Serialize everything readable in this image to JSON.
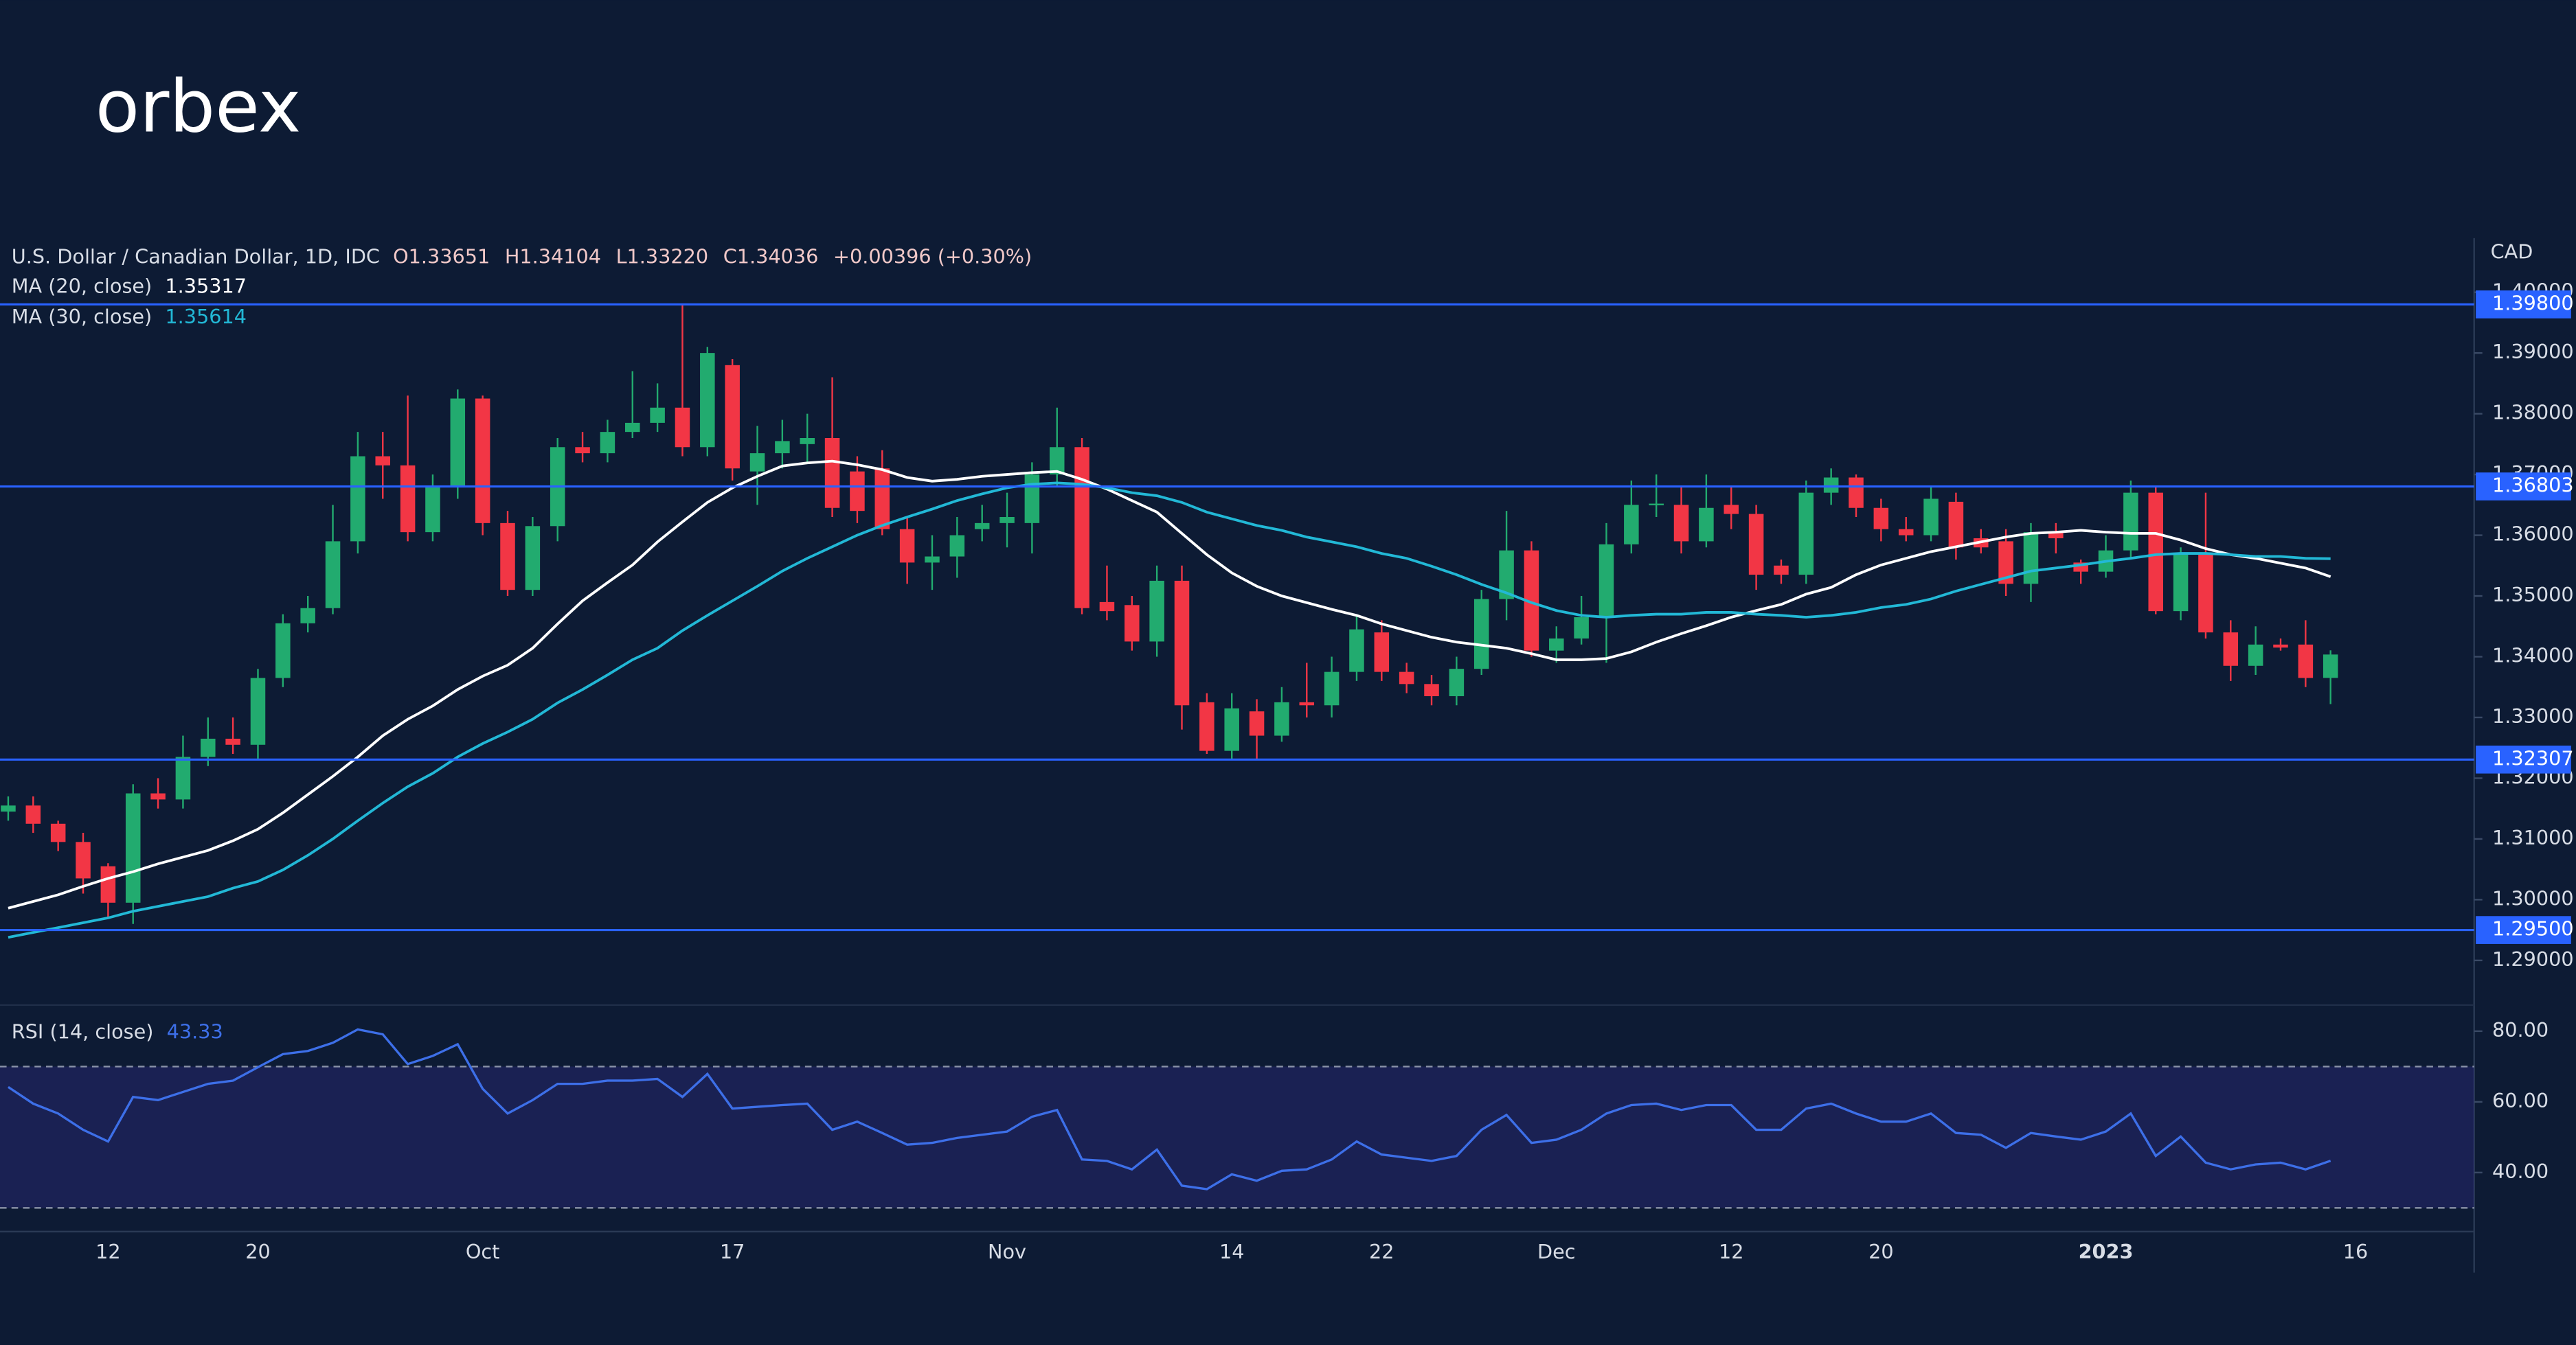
{
  "brand": "orbex",
  "chart_data": {
    "type": "candlestick",
    "title": "U.S. Dollar / Canadian Dollar, 1D, IDC",
    "header_values": [
      "O1.33651",
      "H1.34104",
      "L1.33220",
      "C1.34036",
      "+0.00396 (+0.30%)"
    ],
    "axis_unit": "CAD",
    "up_color": "#22ab6f",
    "down_color": "#f23645",
    "categories": [
      null,
      null,
      null,
      null,
      "12",
      null,
      null,
      null,
      null,
      null,
      "20",
      null,
      null,
      null,
      null,
      null,
      null,
      null,
      null,
      "Oct",
      null,
      null,
      null,
      null,
      null,
      null,
      null,
      null,
      null,
      "17",
      null,
      null,
      null,
      null,
      null,
      null,
      null,
      null,
      null,
      null,
      "Nov",
      null,
      null,
      null,
      null,
      null,
      null,
      null,
      null,
      "14",
      null,
      null,
      null,
      null,
      null,
      "22",
      null,
      null,
      null,
      null,
      null,
      null,
      "Dec",
      null,
      null,
      null,
      null,
      null,
      null,
      "12",
      null,
      null,
      null,
      null,
      null,
      "20",
      null,
      null,
      null,
      null,
      null,
      null,
      null,
      null,
      "2023",
      null,
      null,
      null,
      null,
      null,
      null,
      null,
      null,
      null,
      "16"
    ],
    "open": [
      1.3145,
      1.3155,
      1.3125,
      1.3095,
      1.3055,
      1.2995,
      1.3175,
      1.3165,
      1.3235,
      1.3265,
      1.3255,
      1.3365,
      1.3455,
      1.348,
      1.359,
      1.373,
      1.3715,
      1.3605,
      1.368,
      1.3825,
      1.362,
      1.351,
      1.3615,
      1.3745,
      1.3735,
      1.377,
      1.3785,
      1.381,
      1.3745,
      1.388,
      1.3705,
      1.3735,
      1.375,
      1.376,
      1.3705,
      1.371,
      1.361,
      1.3555,
      1.3565,
      1.361,
      1.362,
      1.362,
      1.37,
      1.3745,
      1.349,
      1.3485,
      1.3425,
      1.3525,
      1.3325,
      1.3245,
      1.331,
      1.327,
      1.3325,
      1.332,
      1.3375,
      1.344,
      1.3375,
      1.3355,
      1.3335,
      1.338,
      1.3495,
      1.3575,
      1.341,
      1.343,
      1.3465,
      1.3585,
      1.365,
      1.365,
      1.359,
      1.365,
      1.3635,
      1.355,
      1.3535,
      1.367,
      1.3695,
      1.3645,
      1.361,
      1.36,
      1.3655,
      1.3595,
      1.359,
      1.352,
      1.3605,
      1.3555,
      1.354,
      1.3575,
      1.367,
      1.3475,
      1.357,
      1.344,
      1.3385,
      1.342,
      1.342,
      1.33651,
      null
    ],
    "high": [
      1.317,
      1.317,
      1.313,
      1.311,
      1.306,
      1.319,
      1.32,
      1.327,
      1.33,
      1.33,
      1.338,
      1.347,
      1.35,
      1.365,
      1.377,
      1.377,
      1.383,
      1.37,
      1.384,
      1.383,
      1.364,
      1.363,
      1.376,
      1.377,
      1.379,
      1.387,
      1.385,
      1.398,
      1.391,
      1.389,
      1.378,
      1.379,
      1.38,
      1.386,
      1.373,
      1.374,
      1.363,
      1.36,
      1.363,
      1.365,
      1.367,
      1.372,
      1.381,
      1.376,
      1.355,
      1.35,
      1.355,
      1.355,
      1.334,
      1.334,
      1.333,
      1.335,
      1.339,
      1.34,
      1.347,
      1.346,
      1.339,
      1.337,
      1.34,
      1.351,
      1.364,
      1.359,
      1.345,
      1.35,
      1.362,
      1.369,
      1.37,
      1.368,
      1.37,
      1.368,
      1.365,
      1.356,
      1.369,
      1.371,
      1.37,
      1.366,
      1.363,
      1.368,
      1.367,
      1.361,
      1.361,
      1.362,
      1.362,
      1.356,
      1.36,
      1.369,
      1.368,
      1.358,
      1.367,
      1.346,
      1.345,
      1.343,
      1.346,
      1.34104,
      null
    ],
    "low": [
      1.313,
      1.311,
      1.308,
      1.301,
      1.297,
      1.296,
      1.315,
      1.315,
      1.322,
      1.324,
      1.323,
      1.335,
      1.344,
      1.347,
      1.357,
      1.366,
      1.359,
      1.359,
      1.366,
      1.36,
      1.35,
      1.35,
      1.359,
      1.372,
      1.372,
      1.376,
      1.377,
      1.373,
      1.373,
      1.369,
      1.365,
      1.371,
      1.372,
      1.363,
      1.362,
      1.36,
      1.352,
      1.351,
      1.353,
      1.359,
      1.358,
      1.357,
      1.368,
      1.347,
      1.346,
      1.341,
      1.34,
      1.328,
      1.324,
      1.323,
      1.323,
      1.326,
      1.33,
      1.33,
      1.336,
      1.336,
      1.334,
      1.332,
      1.332,
      1.337,
      1.346,
      1.34,
      1.339,
      1.342,
      1.339,
      1.357,
      1.363,
      1.357,
      1.358,
      1.361,
      1.351,
      1.352,
      1.352,
      1.365,
      1.363,
      1.359,
      1.359,
      1.359,
      1.356,
      1.357,
      1.35,
      1.349,
      1.357,
      1.352,
      1.353,
      1.356,
      1.347,
      1.346,
      1.343,
      1.336,
      1.337,
      1.341,
      1.335,
      1.3322,
      null
    ],
    "close": [
      1.3155,
      1.3125,
      1.3095,
      1.3035,
      1.2995,
      1.3175,
      1.3165,
      1.3235,
      1.3265,
      1.3255,
      1.3365,
      1.3455,
      1.348,
      1.359,
      1.373,
      1.3715,
      1.3605,
      1.368,
      1.3825,
      1.362,
      1.351,
      1.3615,
      1.3745,
      1.3735,
      1.377,
      1.3785,
      1.381,
      1.3745,
      1.39,
      1.371,
      1.3735,
      1.3755,
      1.376,
      1.3645,
      1.364,
      1.361,
      1.3555,
      1.3565,
      1.36,
      1.362,
      1.363,
      1.37,
      1.3745,
      1.348,
      1.3475,
      1.3425,
      1.3525,
      1.332,
      1.3245,
      1.3315,
      1.327,
      1.3325,
      1.332,
      1.3375,
      1.3445,
      1.3375,
      1.3355,
      1.3335,
      1.338,
      1.3495,
      1.3575,
      1.341,
      1.343,
      1.3465,
      1.3585,
      1.365,
      1.3652,
      1.359,
      1.3645,
      1.3635,
      1.3535,
      1.3535,
      1.367,
      1.3695,
      1.3645,
      1.361,
      1.36,
      1.366,
      1.358,
      1.358,
      1.352,
      1.3605,
      1.3595,
      1.354,
      1.3575,
      1.367,
      1.3475,
      1.357,
      1.344,
      1.3385,
      1.342,
      1.3415,
      1.3365,
      1.34036,
      null
    ],
    "series": [
      {
        "name": "MA (20, close)",
        "color": "#ffffff",
        "value_label": "1.35317",
        "values": [
          1.2986,
          1.2997,
          1.3008,
          1.3022,
          1.3035,
          1.3046,
          1.3059,
          1.307,
          1.3081,
          1.3097,
          1.3116,
          1.3143,
          1.3173,
          1.3203,
          1.3235,
          1.327,
          1.3297,
          1.3319,
          1.3346,
          1.3368,
          1.3386,
          1.3414,
          1.3454,
          1.3492,
          1.3522,
          1.3551,
          1.3589,
          1.3622,
          1.3654,
          1.3678,
          1.3697,
          1.3714,
          1.3719,
          1.3722,
          1.3716,
          1.3708,
          1.3695,
          1.3689,
          1.3692,
          1.3697,
          1.37,
          1.3703,
          1.3705,
          1.3692,
          1.3676,
          1.3657,
          1.3638,
          1.3603,
          1.3568,
          1.3538,
          1.3516,
          1.35,
          1.3489,
          1.3478,
          1.3468,
          1.3454,
          1.3443,
          1.3432,
          1.3424,
          1.3419,
          1.3414,
          1.3405,
          1.3395,
          1.3395,
          1.3397,
          1.3408,
          1.3424,
          1.3438,
          1.3451,
          1.3465,
          1.3476,
          1.3486,
          1.3503,
          1.3514,
          1.3535,
          1.3551,
          1.3562,
          1.3573,
          1.3581,
          1.3589,
          1.3597,
          1.3603,
          1.3605,
          1.3608,
          1.3605,
          1.3603,
          1.3603,
          1.3592,
          1.3578,
          1.3568,
          1.3562,
          1.3554,
          1.3546,
          1.35317,
          null
        ]
      },
      {
        "name": "MA (30, close)",
        "color": "#22b8d6",
        "value_label": "1.35614",
        "values": [
          1.2938,
          1.2946,
          1.2954,
          1.2962,
          1.297,
          1.2981,
          1.2989,
          1.2997,
          1.3005,
          1.3019,
          1.303,
          1.3049,
          1.3073,
          1.31,
          1.313,
          1.3159,
          1.3186,
          1.3208,
          1.3235,
          1.3257,
          1.3276,
          1.3297,
          1.3324,
          1.3346,
          1.337,
          1.3395,
          1.3414,
          1.3443,
          1.3468,
          1.3492,
          1.3516,
          1.3541,
          1.3562,
          1.3581,
          1.36,
          1.3616,
          1.363,
          1.3643,
          1.3657,
          1.3668,
          1.3678,
          1.3684,
          1.3686,
          1.3684,
          1.3678,
          1.367,
          1.3665,
          1.3654,
          1.3638,
          1.3627,
          1.3616,
          1.3608,
          1.3597,
          1.3589,
          1.3581,
          1.357,
          1.3562,
          1.3549,
          1.3535,
          1.3519,
          1.3505,
          1.3489,
          1.3476,
          1.3468,
          1.3465,
          1.3468,
          1.347,
          1.347,
          1.3473,
          1.3473,
          1.347,
          1.3468,
          1.3465,
          1.3468,
          1.3473,
          1.3481,
          1.3486,
          1.3495,
          1.3508,
          1.3519,
          1.353,
          1.3541,
          1.3546,
          1.3551,
          1.3557,
          1.3562,
          1.3568,
          1.357,
          1.357,
          1.3568,
          1.3565,
          1.3565,
          1.3562,
          1.35614,
          null
        ]
      }
    ],
    "ylim": [
      1.2832,
      1.4089
    ],
    "yticks": [
      {
        "value": 1.29,
        "label": "1.29000"
      },
      {
        "value": 1.3,
        "label": "1.30000"
      },
      {
        "value": 1.31,
        "label": "1.31000"
      },
      {
        "value": 1.32,
        "label": "1.32000"
      },
      {
        "value": 1.33,
        "label": "1.33000"
      },
      {
        "value": 1.34,
        "label": "1.34000"
      },
      {
        "value": 1.35,
        "label": "1.35000"
      },
      {
        "value": 1.36,
        "label": "1.36000"
      },
      {
        "value": 1.37,
        "label": "1.37000"
      },
      {
        "value": 1.38,
        "label": "1.38000"
      },
      {
        "value": 1.39,
        "label": "1.39000"
      },
      {
        "value": 1.4,
        "label": "1.40000"
      }
    ],
    "hlines": [
      {
        "value": 1.398,
        "label": "1.39800"
      },
      {
        "value": 1.36803,
        "label": "1.36803"
      },
      {
        "value": 1.32307,
        "label": "1.32307"
      },
      {
        "value": 1.295,
        "label": "1.29500"
      }
    ],
    "hline_color": "#2962ff",
    "rsi": {
      "name": "RSI (14, close)",
      "color": "#3d6fe8",
      "value_label": "43.33",
      "values": [
        64.2,
        59.5,
        56.7,
        52.1,
        48.8,
        61.4,
        60.5,
        62.8,
        65.1,
        66.0,
        69.8,
        73.5,
        74.4,
        76.7,
        80.5,
        79.1,
        70.7,
        73.0,
        76.3,
        63.7,
        56.7,
        60.5,
        65.1,
        65.1,
        66.0,
        66.0,
        66.5,
        61.4,
        67.9,
        58.1,
        58.6,
        59.1,
        59.5,
        52.1,
        54.4,
        51.2,
        47.9,
        48.4,
        49.8,
        50.7,
        51.6,
        55.8,
        57.7,
        43.7,
        43.3,
        40.9,
        46.5,
        36.3,
        35.3,
        39.5,
        37.7,
        40.5,
        40.9,
        43.7,
        48.8,
        45.1,
        44.2,
        43.3,
        44.7,
        52.1,
        56.3,
        48.4,
        49.3,
        52.1,
        56.7,
        59.1,
        59.5,
        57.7,
        59.1,
        59.1,
        52.1,
        52.1,
        58.1,
        59.5,
        56.7,
        54.4,
        54.4,
        56.7,
        51.2,
        50.7,
        47.0,
        51.2,
        50.2,
        49.3,
        51.6,
        56.7,
        44.7,
        50.2,
        42.8,
        40.9,
        42.3,
        42.8,
        40.9,
        43.33,
        null
      ],
      "ylim": [
        23.3,
        87.4
      ],
      "yticks": [
        {
          "value": 40,
          "label": "40.00"
        },
        {
          "value": 60,
          "label": "60.00"
        },
        {
          "value": 80,
          "label": "80.00"
        }
      ],
      "bands": [
        30,
        70
      ]
    }
  }
}
